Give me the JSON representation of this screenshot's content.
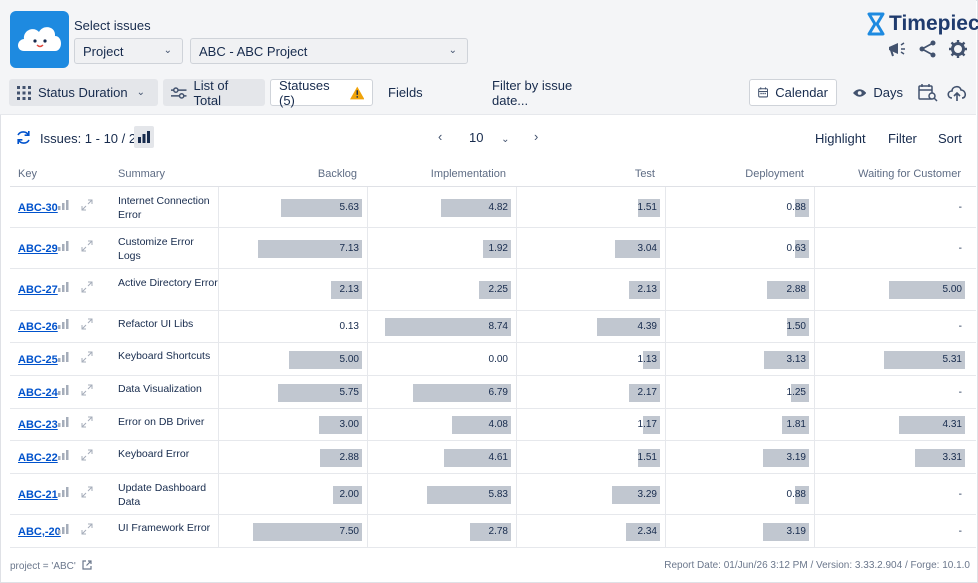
{
  "header": {
    "select_label": "Select issues",
    "project_dropdown": "Project",
    "project_value": "ABC - ABC Project",
    "brand": "Timepiece"
  },
  "toolbar": {
    "status_duration": "Status Duration",
    "list_of_total": "List of Total",
    "statuses": "Statuses (5)",
    "fields": "Fields",
    "filter_date": "Filter by issue date...",
    "calendar": "Calendar",
    "days": "Days"
  },
  "pager": {
    "issues": "Issues: 1 - 10 / 29",
    "page_size": "10",
    "highlight": "Highlight",
    "filter": "Filter",
    "sort": "Sort"
  },
  "table": {
    "columns": [
      "Key",
      "Summary",
      "Backlog",
      "Implementation",
      "Test",
      "Deployment",
      "Waiting for Customer"
    ],
    "rows": [
      {
        "key": "ABC-30",
        "summary": "Internet Connection Error",
        "values": [
          "5.63",
          "4.82",
          "1.51",
          "0.88",
          "-"
        ],
        "fill": [
          0.58,
          0.5,
          0.16,
          0.09,
          0
        ]
      },
      {
        "key": "ABC-29",
        "summary": "Customize Error Logs",
        "values": [
          "7.13",
          "1.92",
          "3.04",
          "0.63",
          "-"
        ],
        "fill": [
          0.74,
          0.2,
          0.32,
          0.06,
          0
        ]
      },
      {
        "key": "ABC-27",
        "summary": "Active Directory Error",
        "values": [
          "2.13",
          "2.25",
          "2.13",
          "2.88",
          "5.00"
        ],
        "fill": [
          0.22,
          0.23,
          0.22,
          0.3,
          0.52
        ]
      },
      {
        "key": "ABC-26",
        "summary": "Refactor UI Libs",
        "values": [
          "0.13",
          "8.74",
          "4.39",
          "1.50",
          "-"
        ],
        "fill": [
          0.0,
          0.9,
          0.45,
          0.16,
          0
        ]
      },
      {
        "key": "ABC-25",
        "summary": "Keyboard Shortcuts",
        "values": [
          "5.00",
          "0.00",
          "1.13",
          "3.13",
          "5.31"
        ],
        "fill": [
          0.52,
          0.0,
          0.12,
          0.32,
          0.55
        ]
      },
      {
        "key": "ABC-24",
        "summary": "Data Visualization",
        "values": [
          "5.75",
          "6.79",
          "2.17",
          "1.25",
          "-"
        ],
        "fill": [
          0.6,
          0.7,
          0.22,
          0.13,
          0
        ]
      },
      {
        "key": "ABC-23",
        "summary": "Error on DB Driver",
        "values": [
          "3.00",
          "4.08",
          "1.17",
          "1.81",
          "4.31"
        ],
        "fill": [
          0.31,
          0.42,
          0.12,
          0.19,
          0.45
        ]
      },
      {
        "key": "ABC-22",
        "summary": "Keyboard Error",
        "values": [
          "2.88",
          "4.61",
          "1.51",
          "3.19",
          "3.31"
        ],
        "fill": [
          0.3,
          0.48,
          0.16,
          0.33,
          0.34
        ]
      },
      {
        "key": "ABC-21",
        "summary": "Update Dashboard Data",
        "values": [
          "2.00",
          "5.83",
          "3.29",
          "0.88",
          "-"
        ],
        "fill": [
          0.21,
          0.6,
          0.34,
          0.09,
          0
        ]
      },
      {
        "key": "ABC,-20",
        "summary": "UI Framework Error",
        "values": [
          "7.50",
          "2.78",
          "2.34",
          "3.19",
          "-"
        ],
        "fill": [
          0.78,
          0.29,
          0.24,
          0.33,
          0
        ]
      }
    ]
  },
  "footer": {
    "query": "project = 'ABC'",
    "report": "Report Date: 01/Jun/26 3:12 PM / Version: 3.33.2.904 / Forge: 10.1.0"
  },
  "colors": {
    "link": "#0052cc",
    "bar": "#c1c7d0",
    "logo": "#1e8ae0",
    "warning": "#f0a30a",
    "brand": "#1f3b6e"
  },
  "icons": [
    "cloud-logo-icon",
    "chevron-down-icon",
    "hourglass-icon",
    "megaphone-icon",
    "share-icon",
    "gear-icon",
    "grid-icon",
    "sliders-icon",
    "warning-icon",
    "calendar-icon",
    "eye-icon",
    "calendar-search-icon",
    "cloud-upload-icon",
    "refresh-icon",
    "bar-chart-icon",
    "chevron-left-icon",
    "chevron-right-icon",
    "expand-icon",
    "external-link-icon"
  ]
}
